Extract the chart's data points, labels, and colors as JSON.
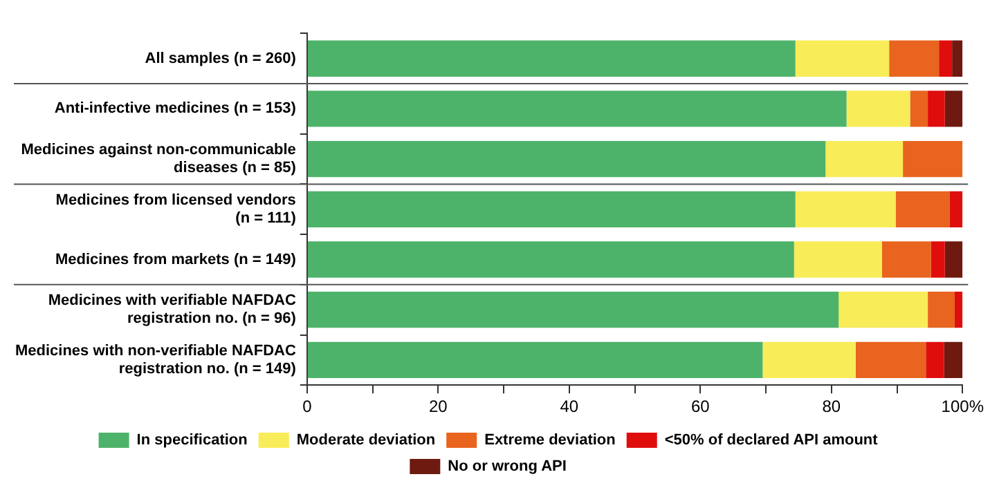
{
  "chart_data": {
    "type": "bar",
    "orientation": "horizontal",
    "stacked": true,
    "categories": [
      "All samples (n = 260)",
      "Anti-infective medicines (n = 153)",
      "Medicines against non-communicable diseases (n = 85)",
      "Medicines from licensed vendors (n = 111)",
      "Medicines from markets (n = 149)",
      "Medicines with verifiable NAFDAC registration no. (n = 96)",
      "Medicines with non-verifiable NAFDAC registration no. (n = 149)"
    ],
    "series": [
      {
        "name": "In specification",
        "color": "#4db36a",
        "values": [
          74.5,
          82.3,
          79.1,
          74.5,
          74.3,
          81.1,
          69.5
        ]
      },
      {
        "name": "Moderate deviation",
        "color": "#f8ec58",
        "values": [
          14.3,
          9.7,
          11.8,
          15.3,
          13.4,
          13.6,
          14.2
        ]
      },
      {
        "name": "Extreme deviation",
        "color": "#e8641f",
        "values": [
          7.6,
          2.7,
          9.1,
          8.2,
          7.5,
          4.1,
          10.7
        ]
      },
      {
        "name": "<50% of declared API amount",
        "color": "#e00d0d",
        "values": [
          2.0,
          2.6,
          0,
          2.0,
          2.1,
          1.2,
          2.8
        ]
      },
      {
        "name": "No or wrong API",
        "color": "#6e1a10",
        "values": [
          1.6,
          2.7,
          0,
          0,
          2.7,
          0,
          2.8
        ]
      }
    ],
    "xlim": [
      0,
      100
    ],
    "xticks": [
      0,
      {
        "value": 10,
        "label": null
      },
      20,
      {
        "value": 30,
        "label": null
      },
      40,
      {
        "value": 50,
        "label": null
      },
      60,
      {
        "value": 70,
        "label": null
      },
      80,
      {
        "value": 90,
        "label": null
      },
      {
        "value": 100,
        "label": "100%"
      }
    ],
    "grid": false,
    "legend": "bottom"
  }
}
